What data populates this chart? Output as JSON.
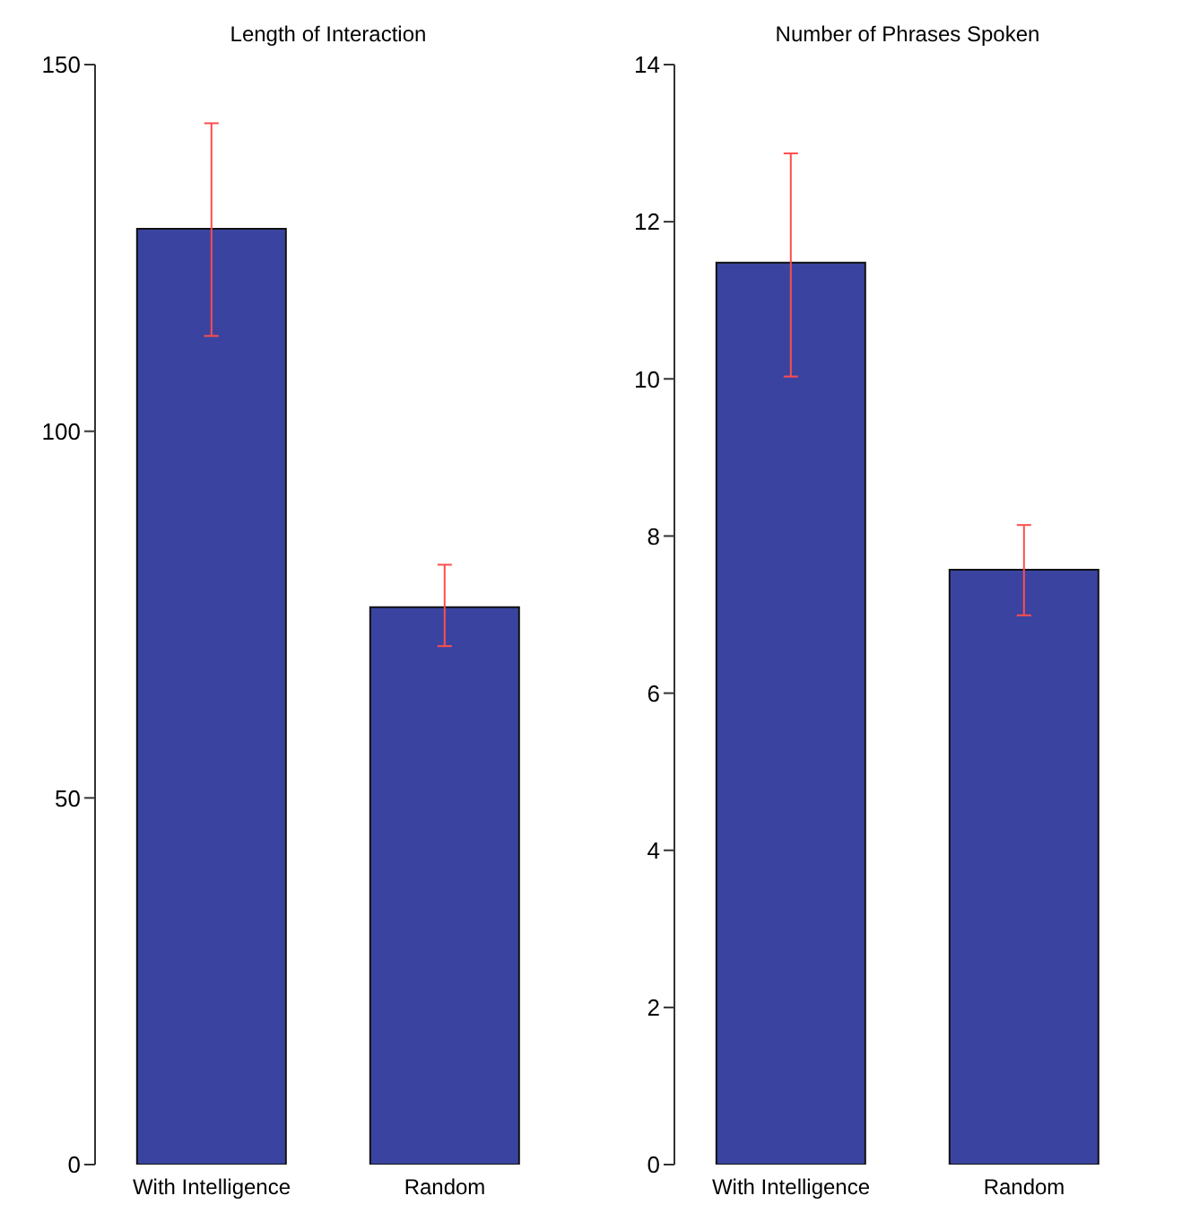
{
  "chart_data": [
    {
      "type": "bar",
      "title": "Length of Interaction",
      "categories": [
        "With Intelligence",
        "Random"
      ],
      "values": [
        127.6,
        76.0
      ],
      "color": "#3a44a0",
      "errors": [
        [
          113,
          142
        ],
        [
          70.7,
          81.8
        ]
      ],
      "ylim": [
        0,
        150
      ],
      "yticks": [
        0,
        50,
        100,
        150
      ],
      "grid": false,
      "legend": false
    },
    {
      "type": "bar",
      "title": "Number of Phrases Spoken",
      "categories": [
        "With Intelligence",
        "Random"
      ],
      "values": [
        11.48,
        7.57
      ],
      "color": "#3a44a0",
      "errors": [
        [
          10.03,
          12.87
        ],
        [
          6.99,
          8.14
        ]
      ],
      "ylim": [
        0,
        14
      ],
      "yticks": [
        0,
        2,
        4,
        6,
        8,
        10,
        12,
        14
      ],
      "grid": false,
      "legend": false
    }
  ]
}
